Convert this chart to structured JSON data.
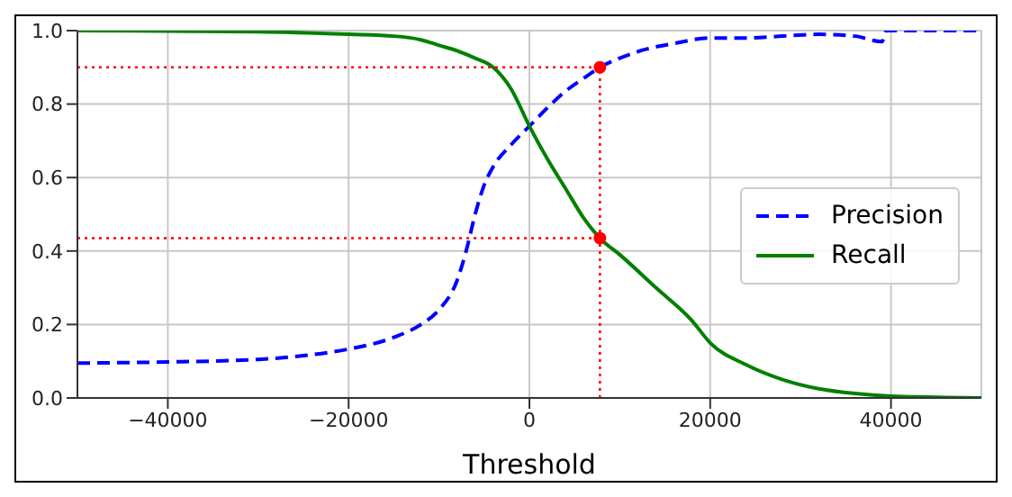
{
  "chart_data": {
    "type": "line",
    "xlabel": "Threshold",
    "xlim": [
      -50000,
      50000
    ],
    "xticks": [
      {
        "value": -40000,
        "label": "−40000"
      },
      {
        "value": -20000,
        "label": "−20000"
      },
      0,
      20000,
      40000
    ],
    "ylim": [
      0,
      1
    ],
    "yticks": [
      {
        "value": 0,
        "label": "0.0"
      },
      0.2,
      0.4,
      0.6,
      0.8,
      {
        "value": 1,
        "label": "1.0"
      }
    ],
    "grid": true,
    "legend": "right",
    "marker": "none",
    "series": [
      {
        "name": "Precision",
        "color": "#0000ff",
        "line_style": "dashed",
        "x": [
          -50000,
          -40000,
          -30000,
          -25000,
          -20000,
          -15000,
          -12000,
          -10000,
          -8000,
          -7000,
          -6000,
          -5000,
          -4000,
          -2000,
          0,
          2000,
          4000,
          6000,
          7800,
          10000,
          13000,
          16000,
          20000,
          24000,
          28000,
          32000,
          36000,
          39000,
          39500,
          50000
        ],
        "values": [
          0.095,
          0.098,
          0.105,
          0.115,
          0.133,
          0.165,
          0.2,
          0.24,
          0.32,
          0.4,
          0.5,
          0.58,
          0.63,
          0.69,
          0.74,
          0.79,
          0.835,
          0.87,
          0.9,
          0.925,
          0.95,
          0.965,
          0.98,
          0.98,
          0.985,
          0.99,
          0.985,
          0.97,
          1.0,
          1.0
        ]
      },
      {
        "name": "Recall",
        "color": "#008000",
        "line_style": "solid",
        "x": [
          -50000,
          -30000,
          -20000,
          -15000,
          -12000,
          -10000,
          -8000,
          -6000,
          -4000,
          -2000,
          0,
          2000,
          4000,
          6000,
          7800,
          10000,
          14000,
          18000,
          20000,
          24000,
          28000,
          32000,
          36000,
          40000,
          50000
        ],
        "values": [
          1.0,
          0.997,
          0.99,
          0.985,
          0.975,
          0.96,
          0.945,
          0.925,
          0.9,
          0.84,
          0.74,
          0.65,
          0.57,
          0.49,
          0.435,
          0.39,
          0.3,
          0.21,
          0.15,
          0.09,
          0.05,
          0.025,
          0.012,
          0.005,
          0.0
        ]
      },
      {
        "color": "#ff0000",
        "line_style": "dotted",
        "x": [
          -50000,
          7800
        ],
        "values": [
          0.9,
          0.9
        ]
      },
      {
        "color": "#ff0000",
        "line_style": "dotted",
        "x": [
          -50000,
          7800
        ],
        "values": [
          0.435,
          0.435
        ]
      },
      {
        "color": "#ff0000",
        "line_style": "dotted",
        "x": [
          7800,
          7800
        ],
        "values": [
          0,
          0.9
        ]
      },
      {
        "type": "scatter",
        "color": "#ff0000",
        "marker": "circle",
        "x": [
          7800,
          7800
        ],
        "values": [
          0.9,
          0.435
        ]
      }
    ]
  }
}
